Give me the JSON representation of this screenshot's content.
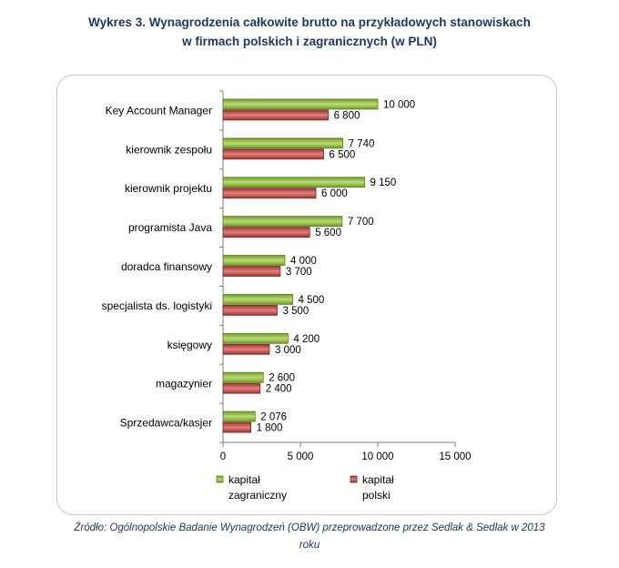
{
  "title": {
    "line1": "Wykres 3. Wynagrodzenia całkowite brutto na przykładowych stanowiskach",
    "line2": "w firmach polskich i zagranicznych (w PLN)"
  },
  "source": {
    "line1": "Źródło: Ogólnopolskie Badanie Wynagrodzeń (OBW) przeprowadzone  przez  Sedlak & Sedlak w 2013",
    "line2": "roku"
  },
  "colors": {
    "foreign": "#8fbc3f",
    "polish": "#c0504d",
    "foreign_edge": "#5e7f22",
    "polish_edge": "#7f2a28"
  },
  "chart_data": {
    "type": "bar",
    "orientation": "horizontal",
    "categories": [
      "Key Account Manager",
      "kierownik zespołu",
      "kierownik projektu",
      "programista Java",
      "doradca finansowy",
      "specjalista ds. logistyki",
      "księgowy",
      "magazynier",
      "Sprzedawca/kasjer"
    ],
    "series": [
      {
        "key": "foreign",
        "name": "kapitał zagraniczny",
        "legend_lines": [
          "kapitał",
          "zagraniczny"
        ],
        "values": [
          10000,
          7740,
          9150,
          7700,
          4000,
          4500,
          4200,
          2600,
          2076
        ],
        "labels": [
          "10 000",
          "7 740",
          "9 150",
          "7 700",
          "4 000",
          "4 500",
          "4 200",
          "2 600",
          "2 076"
        ]
      },
      {
        "key": "polish",
        "name": "kapitał polski",
        "legend_lines": [
          "kapitał",
          "polski"
        ],
        "values": [
          6800,
          6500,
          6000,
          5600,
          3700,
          3500,
          3000,
          2400,
          1800
        ],
        "labels": [
          "6 800",
          "6 500",
          "6 000",
          "5 600",
          "3 700",
          "3 500",
          "3 000",
          "2 400",
          "1 800"
        ]
      }
    ],
    "xlim": [
      0,
      15000
    ],
    "xticks": [
      0,
      5000,
      10000,
      15000
    ],
    "xtick_labels": [
      "0",
      "5 000",
      "10 000",
      "15 000"
    ],
    "grid": false,
    "legend_position": "bottom"
  }
}
